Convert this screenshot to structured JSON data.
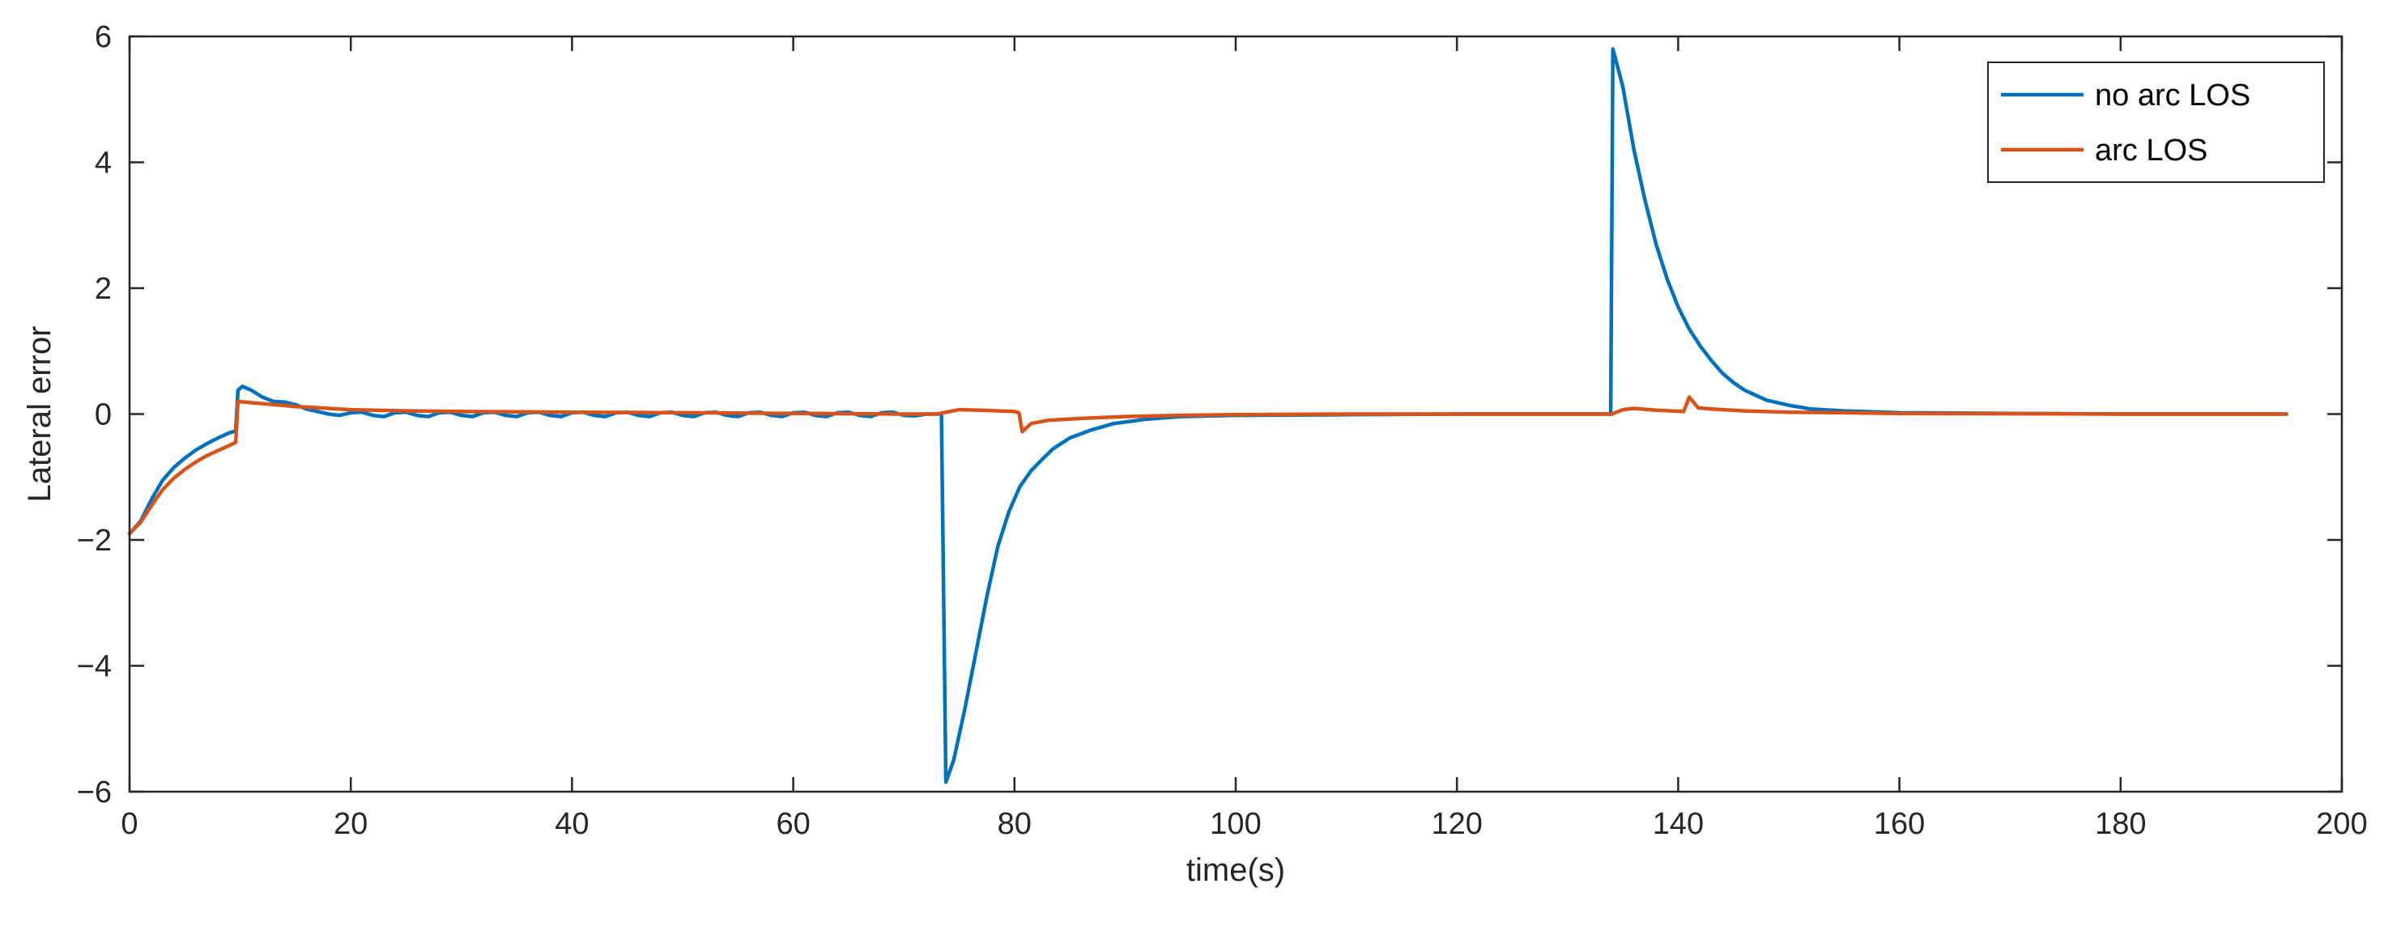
{
  "chart_data": {
    "type": "line",
    "xlabel": "time(s)",
    "ylabel": "Lateral error",
    "xlim": [
      0,
      200
    ],
    "ylim": [
      -6,
      6
    ],
    "xticks": [
      0,
      20,
      40,
      60,
      80,
      100,
      120,
      140,
      160,
      180,
      200
    ],
    "yticks": [
      -6,
      -4,
      -2,
      0,
      2,
      4,
      6
    ],
    "xtick_labels": [
      "0",
      "20",
      "40",
      "60",
      "80",
      "100",
      "120",
      "140",
      "160",
      "180",
      "200"
    ],
    "ytick_labels": [
      "−6",
      "−4",
      "−2",
      "0",
      "2",
      "4",
      "6"
    ],
    "grid": false,
    "legend_position": "top-right",
    "series": [
      {
        "name": "no arc LOS",
        "color": "#0072BD",
        "points": [
          [
            0,
            -1.9
          ],
          [
            1,
            -1.7
          ],
          [
            2,
            -1.35
          ],
          [
            3,
            -1.05
          ],
          [
            4,
            -0.85
          ],
          [
            5,
            -0.7
          ],
          [
            6,
            -0.57
          ],
          [
            7,
            -0.47
          ],
          [
            8,
            -0.38
          ],
          [
            9,
            -0.3
          ],
          [
            9.6,
            -0.27
          ],
          [
            9.8,
            0.38
          ],
          [
            10.2,
            0.44
          ],
          [
            11,
            0.38
          ],
          [
            12,
            0.27
          ],
          [
            13,
            0.2
          ],
          [
            14,
            0.19
          ],
          [
            15,
            0.15
          ],
          [
            16,
            0.08
          ],
          [
            17,
            0.04
          ],
          [
            18,
            0.0
          ],
          [
            19,
            -0.02
          ],
          [
            20,
            0.02
          ],
          [
            21,
            0.03
          ],
          [
            22,
            -0.02
          ],
          [
            23,
            -0.04
          ],
          [
            24,
            0.02
          ],
          [
            25,
            0.03
          ],
          [
            26,
            -0.02
          ],
          [
            27,
            -0.04
          ],
          [
            28,
            0.02
          ],
          [
            29,
            0.03
          ],
          [
            30,
            -0.02
          ],
          [
            31,
            -0.04
          ],
          [
            32,
            0.02
          ],
          [
            33,
            0.03
          ],
          [
            34,
            -0.02
          ],
          [
            35,
            -0.04
          ],
          [
            36,
            0.02
          ],
          [
            37,
            0.03
          ],
          [
            38,
            -0.02
          ],
          [
            39,
            -0.04
          ],
          [
            40,
            0.02
          ],
          [
            41,
            0.03
          ],
          [
            42,
            -0.02
          ],
          [
            43,
            -0.04
          ],
          [
            44,
            0.02
          ],
          [
            45,
            0.03
          ],
          [
            46,
            -0.02
          ],
          [
            47,
            -0.04
          ],
          [
            48,
            0.02
          ],
          [
            49,
            0.03
          ],
          [
            50,
            -0.02
          ],
          [
            51,
            -0.04
          ],
          [
            52,
            0.02
          ],
          [
            53,
            0.03
          ],
          [
            54,
            -0.02
          ],
          [
            55,
            -0.04
          ],
          [
            56,
            0.02
          ],
          [
            57,
            0.03
          ],
          [
            58,
            -0.02
          ],
          [
            59,
            -0.04
          ],
          [
            60,
            0.02
          ],
          [
            61,
            0.03
          ],
          [
            62,
            -0.02
          ],
          [
            63,
            -0.04
          ],
          [
            64,
            0.02
          ],
          [
            65,
            0.03
          ],
          [
            66,
            -0.02
          ],
          [
            67,
            -0.04
          ],
          [
            68,
            0.02
          ],
          [
            69,
            0.03
          ],
          [
            70,
            -0.02
          ],
          [
            71,
            -0.03
          ],
          [
            72,
            0.0
          ],
          [
            73,
            0.0
          ],
          [
            73.4,
            0.0
          ],
          [
            73.8,
            -5.85
          ],
          [
            74.5,
            -5.5
          ],
          [
            75.5,
            -4.7
          ],
          [
            76.5,
            -3.8
          ],
          [
            77.5,
            -2.9
          ],
          [
            78.5,
            -2.1
          ],
          [
            79.5,
            -1.55
          ],
          [
            80.5,
            -1.15
          ],
          [
            81.5,
            -0.9
          ],
          [
            82.5,
            -0.72
          ],
          [
            83.5,
            -0.55
          ],
          [
            85,
            -0.38
          ],
          [
            87,
            -0.25
          ],
          [
            89,
            -0.15
          ],
          [
            92,
            -0.08
          ],
          [
            95,
            -0.04
          ],
          [
            100,
            -0.02
          ],
          [
            110,
            -0.01
          ],
          [
            120,
            0.0
          ],
          [
            130,
            0.0
          ],
          [
            133.9,
            0.0
          ],
          [
            134.1,
            5.8
          ],
          [
            135,
            5.2
          ],
          [
            136,
            4.2
          ],
          [
            137,
            3.4
          ],
          [
            138,
            2.7
          ],
          [
            139,
            2.15
          ],
          [
            140,
            1.7
          ],
          [
            141,
            1.35
          ],
          [
            142,
            1.08
          ],
          [
            143,
            0.85
          ],
          [
            144,
            0.65
          ],
          [
            145,
            0.5
          ],
          [
            146,
            0.38
          ],
          [
            147,
            0.3
          ],
          [
            148,
            0.22
          ],
          [
            150,
            0.14
          ],
          [
            152,
            0.08
          ],
          [
            155,
            0.05
          ],
          [
            160,
            0.02
          ],
          [
            170,
            0.01
          ],
          [
            180,
            0.0
          ],
          [
            195,
            0.0
          ]
        ]
      },
      {
        "name": "arc LOS",
        "color": "#D95319",
        "points": [
          [
            0,
            -1.9
          ],
          [
            1,
            -1.72
          ],
          [
            2,
            -1.45
          ],
          [
            3,
            -1.2
          ],
          [
            4,
            -1.02
          ],
          [
            5,
            -0.88
          ],
          [
            6,
            -0.76
          ],
          [
            7,
            -0.66
          ],
          [
            8,
            -0.58
          ],
          [
            9,
            -0.5
          ],
          [
            9.6,
            -0.45
          ],
          [
            9.8,
            0.2
          ],
          [
            11,
            0.18
          ],
          [
            13,
            0.15
          ],
          [
            15,
            0.12
          ],
          [
            17,
            0.1
          ],
          [
            20,
            0.07
          ],
          [
            25,
            0.05
          ],
          [
            30,
            0.04
          ],
          [
            40,
            0.03
          ],
          [
            50,
            0.02
          ],
          [
            60,
            0.01
          ],
          [
            70,
            0.0
          ],
          [
            73,
            0.0
          ],
          [
            75,
            0.07
          ],
          [
            77,
            0.06
          ],
          [
            80,
            0.04
          ],
          [
            80.4,
            0.02
          ],
          [
            80.7,
            -0.28
          ],
          [
            81.5,
            -0.15
          ],
          [
            83,
            -0.1
          ],
          [
            86,
            -0.07
          ],
          [
            90,
            -0.04
          ],
          [
            95,
            -0.02
          ],
          [
            100,
            -0.01
          ],
          [
            110,
            0.0
          ],
          [
            130,
            0.0
          ],
          [
            134,
            0.0
          ],
          [
            135,
            0.07
          ],
          [
            136,
            0.09
          ],
          [
            138,
            0.06
          ],
          [
            140.5,
            0.04
          ],
          [
            141,
            0.27
          ],
          [
            141.8,
            0.1
          ],
          [
            143,
            0.08
          ],
          [
            146,
            0.05
          ],
          [
            150,
            0.03
          ],
          [
            155,
            0.02
          ],
          [
            160,
            0.01
          ],
          [
            180,
            0.0
          ],
          [
            195,
            0.0
          ]
        ]
      }
    ]
  }
}
